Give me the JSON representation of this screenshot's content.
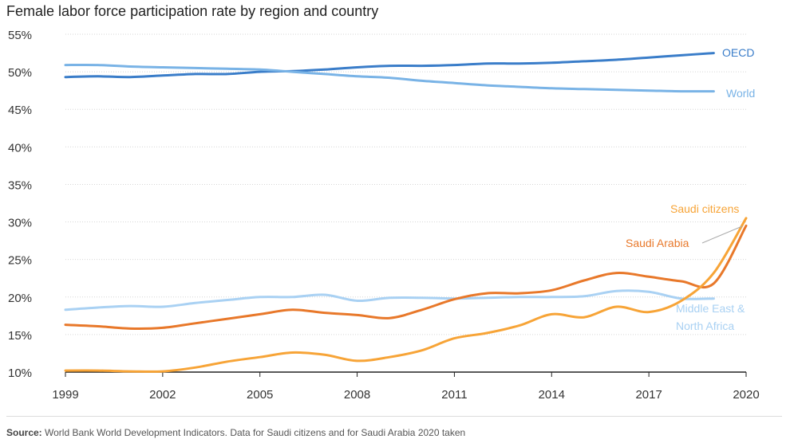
{
  "chart_data": {
    "type": "line",
    "title": "Female labor force participation rate by region and country",
    "xlabel": "",
    "ylabel": "",
    "x": [
      1999,
      2000,
      2001,
      2002,
      2003,
      2004,
      2005,
      2006,
      2007,
      2008,
      2009,
      2010,
      2011,
      2012,
      2013,
      2014,
      2015,
      2016,
      2017,
      2018,
      2019,
      2020
    ],
    "ylim": [
      10,
      55
    ],
    "xlim": [
      1999,
      2020
    ],
    "y_ticks": [
      10,
      15,
      20,
      25,
      30,
      35,
      40,
      45,
      50,
      55
    ],
    "y_tick_labels": [
      "10%",
      "15%",
      "20%",
      "25%",
      "30%",
      "35%",
      "40%",
      "45%",
      "50%",
      "55%"
    ],
    "x_ticks": [
      1999,
      2002,
      2005,
      2008,
      2011,
      2014,
      2017,
      2020
    ],
    "x_tick_labels": [
      "1999",
      "2002",
      "2005",
      "2008",
      "2011",
      "2014",
      "2017",
      "2020"
    ],
    "grid": true,
    "series": [
      {
        "name": "OECD",
        "label": "OECD",
        "color": "#3a7dc9",
        "x": [
          1999,
          2000,
          2001,
          2002,
          2003,
          2004,
          2005,
          2006,
          2007,
          2008,
          2009,
          2010,
          2011,
          2012,
          2013,
          2014,
          2015,
          2016,
          2017,
          2018,
          2019
        ],
        "values": [
          49.3,
          49.4,
          49.3,
          49.5,
          49.7,
          49.7,
          50.0,
          50.1,
          50.3,
          50.6,
          50.8,
          50.8,
          50.9,
          51.1,
          51.1,
          51.2,
          51.4,
          51.6,
          51.9,
          52.2,
          52.5
        ]
      },
      {
        "name": "World",
        "label": "World",
        "color": "#79b3e6",
        "x": [
          1999,
          2000,
          2001,
          2002,
          2003,
          2004,
          2005,
          2006,
          2007,
          2008,
          2009,
          2010,
          2011,
          2012,
          2013,
          2014,
          2015,
          2016,
          2017,
          2018,
          2019
        ],
        "values": [
          50.9,
          50.9,
          50.7,
          50.6,
          50.5,
          50.4,
          50.3,
          50.0,
          49.7,
          49.4,
          49.2,
          48.8,
          48.5,
          48.2,
          48.0,
          47.8,
          47.7,
          47.6,
          47.5,
          47.4,
          47.4
        ]
      },
      {
        "name": "Middle East & North Africa",
        "label_line1": "Middle East &",
        "label_line2": "North Africa",
        "color": "#a9d1f3",
        "x": [
          1999,
          2000,
          2001,
          2002,
          2003,
          2004,
          2005,
          2006,
          2007,
          2008,
          2009,
          2010,
          2011,
          2012,
          2013,
          2014,
          2015,
          2016,
          2017,
          2018,
          2019
        ],
        "values": [
          18.3,
          18.6,
          18.8,
          18.7,
          19.2,
          19.6,
          20.0,
          20.0,
          20.3,
          19.5,
          19.9,
          19.9,
          19.8,
          19.9,
          20.0,
          20.0,
          20.1,
          20.8,
          20.7,
          19.8,
          19.8
        ]
      },
      {
        "name": "Saudi Arabia",
        "label": "Saudi Arabia",
        "color": "#e8782a",
        "x": [
          1999,
          2000,
          2001,
          2002,
          2003,
          2004,
          2005,
          2006,
          2007,
          2008,
          2009,
          2010,
          2011,
          2012,
          2013,
          2014,
          2015,
          2016,
          2017,
          2018,
          2019,
          2020
        ],
        "values": [
          16.3,
          16.1,
          15.8,
          15.9,
          16.5,
          17.1,
          17.7,
          18.3,
          17.9,
          17.6,
          17.2,
          18.3,
          19.7,
          20.5,
          20.5,
          20.9,
          22.2,
          23.2,
          22.7,
          22.1,
          21.8,
          29.5
        ]
      },
      {
        "name": "Saudi citizens",
        "label": "Saudi citizens",
        "color": "#f7a437",
        "x": [
          1999,
          2000,
          2001,
          2002,
          2003,
          2004,
          2005,
          2006,
          2007,
          2008,
          2009,
          2010,
          2011,
          2012,
          2013,
          2014,
          2015,
          2016,
          2017,
          2018,
          2019,
          2020
        ],
        "values": [
          10.2,
          10.2,
          10.1,
          10.1,
          10.6,
          11.4,
          12.0,
          12.6,
          12.3,
          11.5,
          12.0,
          12.9,
          14.5,
          15.2,
          16.2,
          17.7,
          17.3,
          18.7,
          18.0,
          19.5,
          23.2,
          30.5
        ]
      }
    ]
  },
  "footnote": {
    "source_label": "Source:",
    "source_text": " World Bank World Development Indicators. Data for Saudi citizens and for Saudi Arabia 2020 taken"
  }
}
